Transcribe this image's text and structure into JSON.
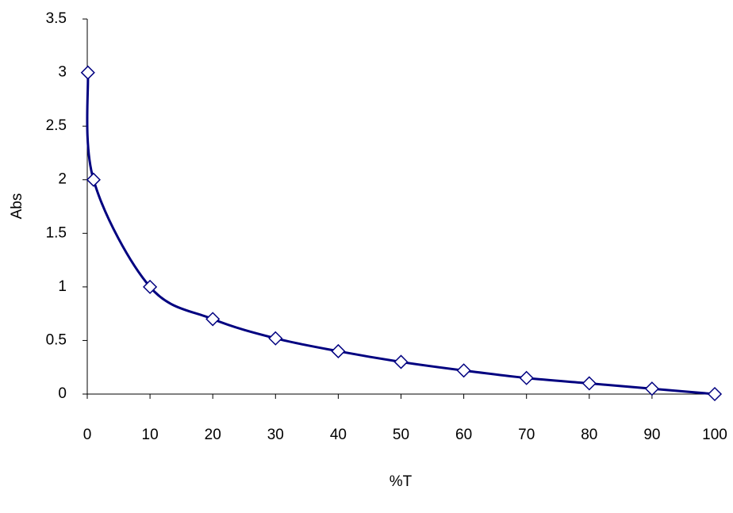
{
  "chart_data": {
    "type": "line",
    "x_label": "%T",
    "y_label": "Abs",
    "x": [
      0.1,
      1,
      10,
      20,
      30,
      40,
      50,
      60,
      70,
      80,
      90,
      100
    ],
    "series": [
      {
        "color": "#000080",
        "values": [
          3,
          2,
          1,
          0.7,
          0.52,
          0.4,
          0.3,
          0.22,
          0.15,
          0.1,
          0.05,
          0
        ]
      }
    ],
    "xlim": [
      0,
      100
    ],
    "xticks": [
      0,
      10,
      20,
      30,
      40,
      50,
      60,
      70,
      80,
      90,
      100
    ],
    "ylim": [
      0,
      3.5
    ],
    "yticks": [
      0,
      0.5,
      1,
      1.5,
      2,
      2.5,
      3,
      3.5
    ],
    "grid": false,
    "marker": "diamond"
  }
}
